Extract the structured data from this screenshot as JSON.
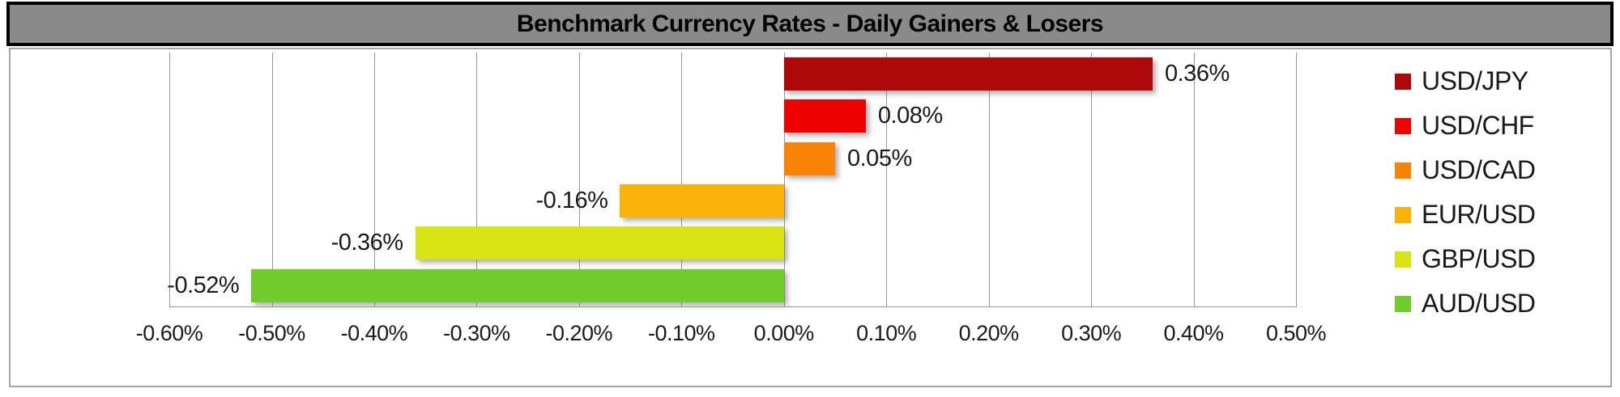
{
  "title": "Benchmark Currency Rates - Daily Gainers & Losers",
  "colors": {
    "title_bar_bg": "#8A8A8A",
    "title_bar_border": "#000000",
    "chart_box_border": "#A6A6A6",
    "gridline": "#969696",
    "text": "#1A1A1A"
  },
  "chart_data": {
    "type": "bar",
    "orientation": "horizontal",
    "title": "Benchmark Currency Rates - Daily Gainers & Losers",
    "categories": [
      "USD/JPY",
      "USD/CHF",
      "USD/CAD",
      "EUR/USD",
      "GBP/USD",
      "AUD/USD"
    ],
    "values": [
      0.36,
      0.08,
      0.05,
      -0.16,
      -0.36,
      -0.52
    ],
    "data_labels": [
      "0.36%",
      "0.08%",
      "0.05%",
      "-0.16%",
      "-0.36%",
      "-0.52%"
    ],
    "bar_colors": [
      "#AE0808",
      "#EE0101",
      "#F88307",
      "#F9B208",
      "#D9E414",
      "#6FCC2B"
    ],
    "xlim": [
      -0.6,
      0.5
    ],
    "x_tick_step": 0.1,
    "x_tick_labels": [
      "-0.60%",
      "-0.50%",
      "-0.40%",
      "-0.30%",
      "-0.20%",
      "-0.10%",
      "0.00%",
      "0.10%",
      "0.20%",
      "0.30%",
      "0.40%",
      "0.50%"
    ],
    "grid": "vertical-on",
    "legend_position": "right",
    "legend": [
      "USD/JPY",
      "USD/CHF",
      "USD/CAD",
      "EUR/USD",
      "GBP/USD",
      "AUD/USD"
    ]
  }
}
